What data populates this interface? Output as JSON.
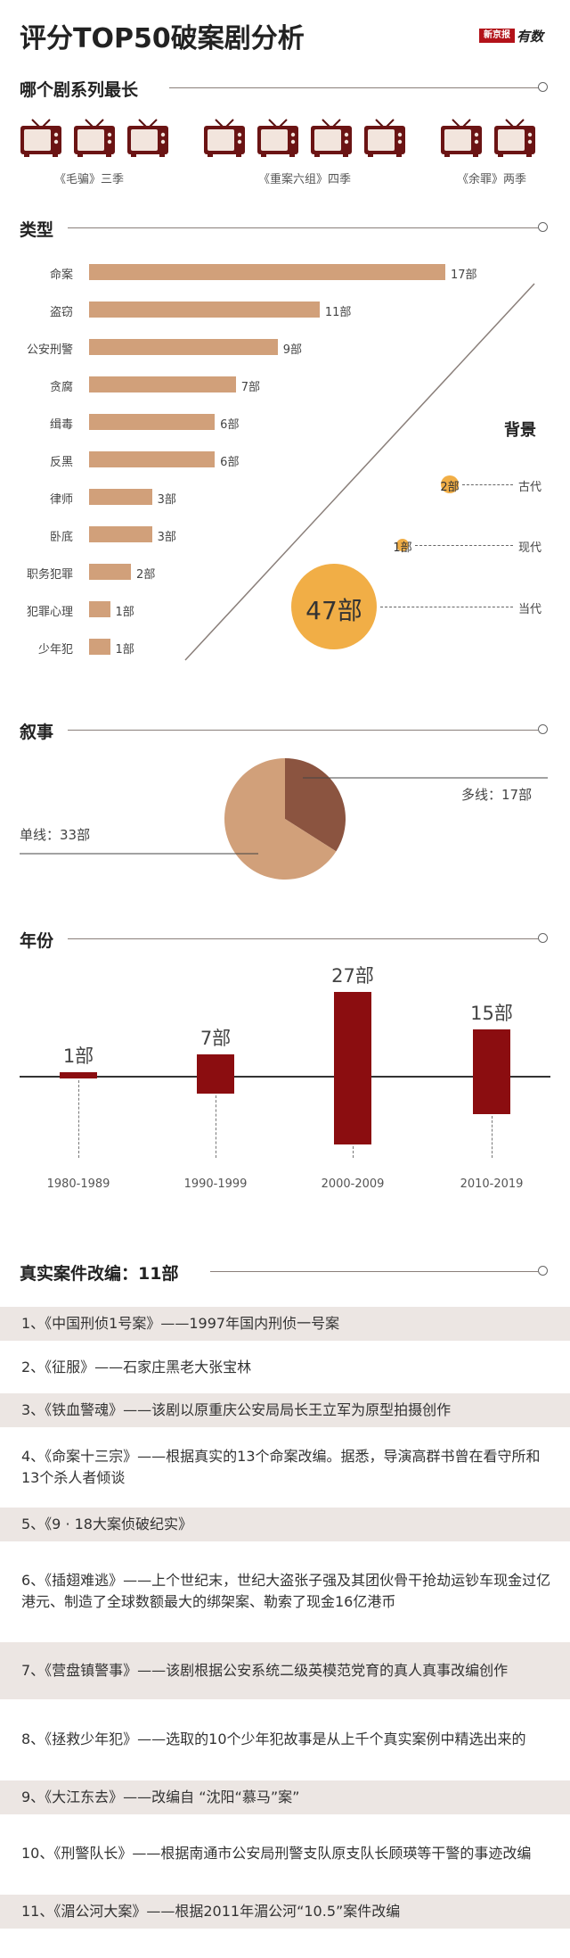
{
  "title": "评分TOP50破案剧分析",
  "logo": {
    "mark": "新京报",
    "script": "有数"
  },
  "sections": {
    "longest": "哪个剧系列最长",
    "type": "类型",
    "narrative": "叙事",
    "year": "年份",
    "real": "真实案件改编：11部"
  },
  "series_groups": [
    {
      "caption": "《毛骗》三季",
      "count": 3
    },
    {
      "caption": "《重案六组》四季",
      "count": 4
    },
    {
      "caption": "《余罪》两季",
      "count": 2
    }
  ],
  "chart_data": [
    {
      "type": "bar",
      "orientation": "horizontal",
      "title": "类型",
      "categories": [
        "命案",
        "盗窃",
        "公安刑警",
        "贪腐",
        "缉毒",
        "反黑",
        "律师",
        "卧底",
        "职务犯罪",
        "犯罪心理",
        "少年犯"
      ],
      "values": [
        17,
        11,
        9,
        7,
        6,
        6,
        3,
        3,
        2,
        1,
        1
      ],
      "value_labels": [
        "17部",
        "11部",
        "9部",
        "7部",
        "6部",
        "6部",
        "3部",
        "3部",
        "2部",
        "1部",
        "1部"
      ],
      "xlim": [
        0,
        17
      ]
    },
    {
      "type": "bubble",
      "title": "背景",
      "categories": [
        "古代",
        "现代",
        "当代"
      ],
      "values": [
        2,
        1,
        47
      ],
      "value_labels": [
        "2部",
        "1部",
        "47部"
      ]
    },
    {
      "type": "pie",
      "title": "叙事",
      "categories": [
        "多线",
        "单线"
      ],
      "values": [
        17,
        33
      ],
      "labels": [
        "多线：17部",
        "单线：33部"
      ]
    },
    {
      "type": "bar",
      "title": "年份",
      "categories": [
        "1980-1989",
        "1990-1999",
        "2000-2009",
        "2010-2019"
      ],
      "values": [
        1,
        7,
        27,
        15
      ],
      "value_labels": [
        "1部",
        "7部",
        "27部",
        "15部"
      ]
    }
  ],
  "cases": [
    "1、《中国刑侦1号案》——1997年国内刑侦一号案",
    "2、《征服》——石家庄黑老大张宝林",
    "3、《铁血警魂》——该剧以原重庆公安局局长王立军为原型拍摄创作",
    "4、《命案十三宗》——根据真实的13个命案改编。据悉，导演高群书曾在看守所和13个杀人者倾谈",
    "5、《9 · 18大案侦破纪实》",
    "6、《插翅难逃》——上个世纪末，世纪大盗张子强及其团伙骨干抢劫运钞车现金过亿港元、制造了全球数额最大的绑架案、勒索了现金16亿港币",
    "7、《营盘镇警事》——该剧根据公安系统二级英模范党育的真人真事改编创作",
    "8、《拯救少年犯》——选取的10个少年犯故事是从上千个真实案例中精选出来的",
    "9、《大江东去》——改编自 “沈阳“慕马”案”",
    "10、《刑警队长》——根据南通市公安局刑警支队原支队长顾瑛等干警的事迹改编",
    "11、《湄公河大案》——根据2011年湄公河“10.5”案件改编"
  ]
}
